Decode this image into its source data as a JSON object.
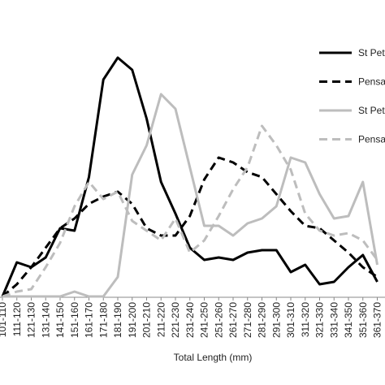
{
  "chart_data": {
    "type": "line",
    "x_label": "Total Length (mm)",
    "categories": [
      "101-110",
      "111-120",
      "121-130",
      "131-140",
      "141-150",
      "151-160",
      "161-170",
      "171-180",
      "181-190",
      "191-200",
      "201-210",
      "211-220",
      "221-230",
      "231-240",
      "241-250",
      "251-260",
      "261-270",
      "271-280",
      "281-290",
      "291-300",
      "301-310",
      "311-320",
      "321-330",
      "331-340",
      "341-350",
      "351-360",
      "361-370"
    ],
    "ylim": [
      0,
      100
    ],
    "series": [
      {
        "name": "St Pet",
        "color": "#000000",
        "dash": false,
        "values": [
          0,
          14,
          12,
          16,
          28,
          27,
          49,
          89,
          98,
          93,
          73,
          47,
          34,
          20,
          15,
          16,
          15,
          18,
          19,
          19,
          10,
          13,
          5,
          6,
          12,
          17,
          6
        ]
      },
      {
        "name": "Pensa",
        "color": "#000000",
        "dash": true,
        "values": [
          0,
          5,
          12,
          20,
          28,
          32,
          38,
          41,
          43,
          38,
          28,
          25,
          25,
          33,
          48,
          57,
          55,
          51,
          49,
          42,
          35,
          29,
          28,
          23,
          18,
          12,
          8
        ]
      },
      {
        "name": "St Pet",
        "color": "#bdbdbd",
        "dash": false,
        "values": [
          0,
          0,
          0,
          0,
          0,
          2,
          0,
          0,
          8,
          50,
          62,
          83,
          77,
          53,
          29,
          29,
          25,
          30,
          32,
          37,
          57,
          55,
          42,
          32,
          33,
          47,
          13
        ]
      },
      {
        "name": "Pensa",
        "color": "#bdbdbd",
        "dash": true,
        "values": [
          0,
          2,
          3,
          12,
          22,
          37,
          47,
          40,
          43,
          31,
          27,
          23,
          32,
          18,
          23,
          33,
          44,
          53,
          70,
          62,
          52,
          34,
          27,
          25,
          26,
          23,
          15
        ]
      }
    ]
  }
}
